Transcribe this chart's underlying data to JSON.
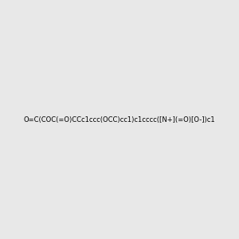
{
  "smiles": "O=C(COC(=O)CCc1ccc(OCC)cc1)c1cccc([N+](=O)[O-])c1",
  "title": "",
  "bg_color": "#e8e8e8",
  "figsize": [
    3.0,
    3.0
  ],
  "dpi": 100
}
